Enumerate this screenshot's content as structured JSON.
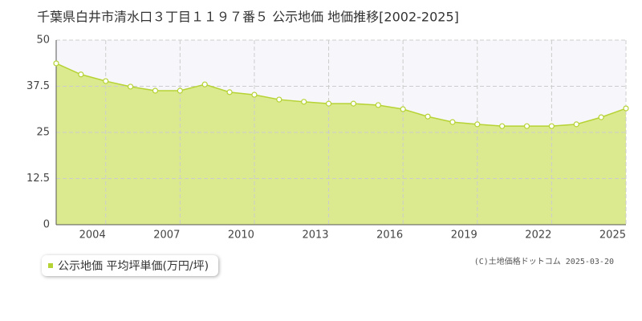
{
  "chart_data": {
    "type": "area",
    "title": "千葉県白井市清水口３丁目１１９７番５ 公示地価 地価推移[2002-2025]",
    "credit": "(C)土地価格ドットコム 2025-03-20",
    "x": [
      2002,
      2003,
      2004,
      2005,
      2006,
      2007,
      2008,
      2009,
      2010,
      2011,
      2012,
      2013,
      2014,
      2015,
      2016,
      2017,
      2018,
      2019,
      2020,
      2021,
      2022,
      2023,
      2024,
      2025
    ],
    "series": [
      {
        "name": "公示地価 平均坪単価(万円/坪)",
        "color": "#b5d334",
        "fill": "#dcea8f",
        "values": [
          43.7,
          40.7,
          38.9,
          37.4,
          36.3,
          36.3,
          38.0,
          35.9,
          35.2,
          33.9,
          33.3,
          32.8,
          32.8,
          32.4,
          31.3,
          29.3,
          27.8,
          27.2,
          26.7,
          26.7,
          26.7,
          27.2,
          29.1,
          31.5
        ]
      }
    ],
    "xlim": [
      2002,
      2025
    ],
    "xticks": [
      2004,
      2007,
      2010,
      2013,
      2016,
      2019,
      2022,
      2025
    ],
    "ylim": [
      0,
      50
    ],
    "yticks": [
      0,
      12.5,
      25,
      37.5,
      50
    ],
    "grid": true
  }
}
